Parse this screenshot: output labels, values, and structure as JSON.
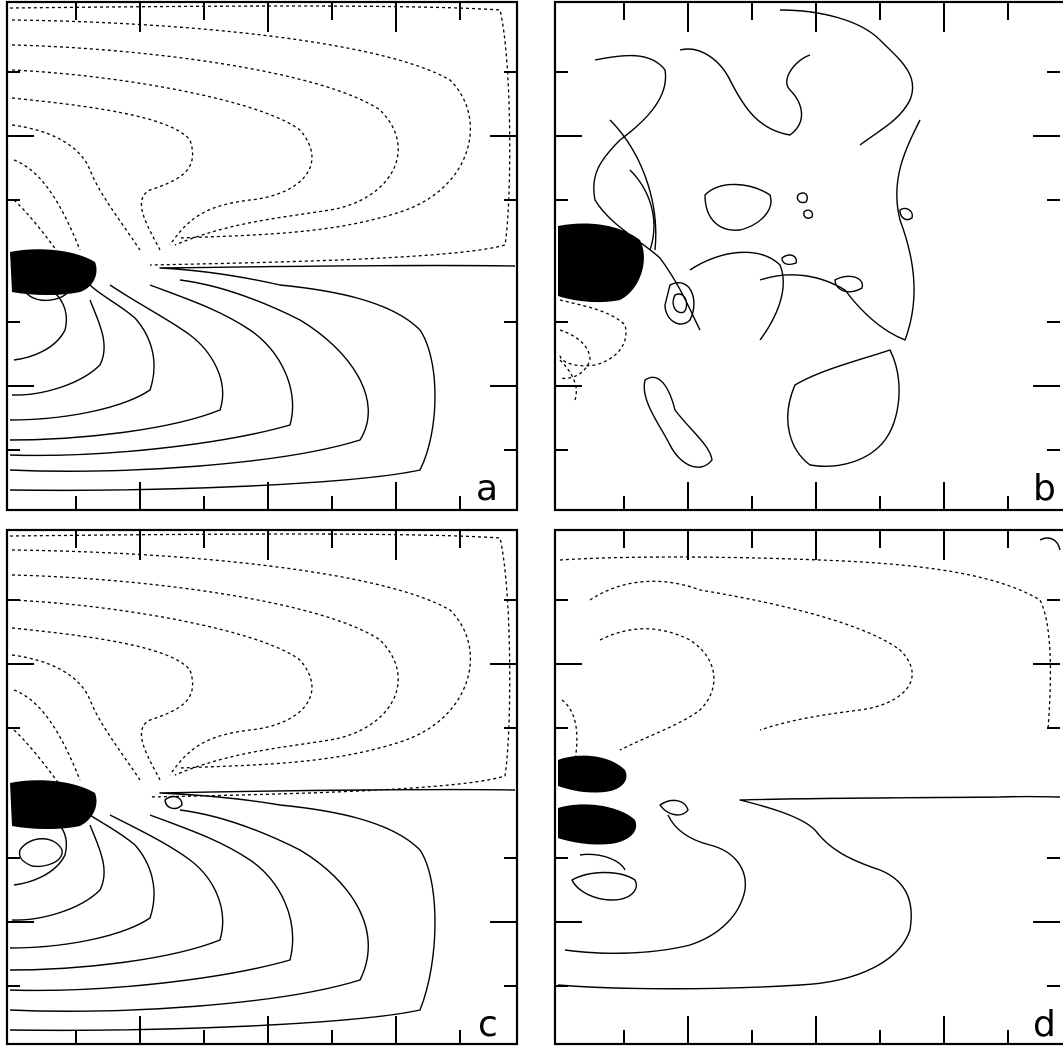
{
  "figure": {
    "panels": [
      {
        "id": "a",
        "label": "a"
      },
      {
        "id": "b",
        "label": "b"
      },
      {
        "id": "c",
        "label": "c"
      },
      {
        "id": "d",
        "label": "d"
      }
    ]
  }
}
